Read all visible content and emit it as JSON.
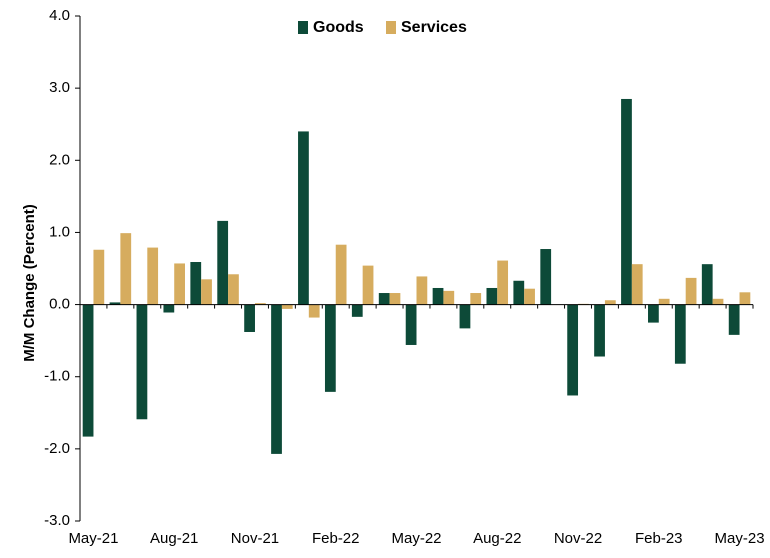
{
  "chart_data": {
    "type": "bar",
    "ylabel": "M/M Change (Percent)",
    "ylim": [
      -3.0,
      4.0
    ],
    "yticks": [
      "-3.0",
      "-2.0",
      "-1.0",
      "0.0",
      "1.0",
      "2.0",
      "3.0",
      "4.0"
    ],
    "ytick_values": [
      -3,
      -2,
      -1,
      0,
      1,
      2,
      3,
      4
    ],
    "categories": [
      "May-21",
      "Jun-21",
      "Jul-21",
      "Aug-21",
      "Sep-21",
      "Oct-21",
      "Nov-21",
      "Dec-21",
      "Jan-22",
      "Feb-22",
      "Mar-22",
      "Apr-22",
      "May-22",
      "Jun-22",
      "Jul-22",
      "Aug-22",
      "Sep-22",
      "Oct-22",
      "Nov-22",
      "Dec-22",
      "Jan-23",
      "Feb-23",
      "Mar-23",
      "Apr-23",
      "May-23"
    ],
    "xtick_labels": [
      "May-21",
      "Aug-21",
      "Nov-21",
      "Feb-22",
      "May-22",
      "Aug-22",
      "Nov-22",
      "Feb-23",
      "May-23"
    ],
    "xtick_every": 3,
    "legend_position": "top-center",
    "grid": false,
    "series": [
      {
        "name": "Goods",
        "color": "#0d4a38",
        "values": [
          -1.83,
          0.03,
          -1.59,
          -0.11,
          0.59,
          1.16,
          -0.38,
          -2.07,
          2.4,
          -1.21,
          -0.17,
          0.16,
          -0.56,
          0.23,
          -0.33,
          0.23,
          0.33,
          0.77,
          -1.26,
          -0.72,
          2.85,
          -0.25,
          -0.82,
          0.56,
          -0.42
        ]
      },
      {
        "name": "Services",
        "color": "#d6ac5e",
        "values": [
          0.76,
          0.99,
          0.79,
          0.57,
          0.35,
          0.42,
          0.02,
          -0.06,
          -0.18,
          0.83,
          0.54,
          0.16,
          0.39,
          0.19,
          0.16,
          0.61,
          0.22,
          0.0,
          0.01,
          0.06,
          0.56,
          0.08,
          0.37,
          0.08,
          0.17
        ]
      }
    ]
  }
}
